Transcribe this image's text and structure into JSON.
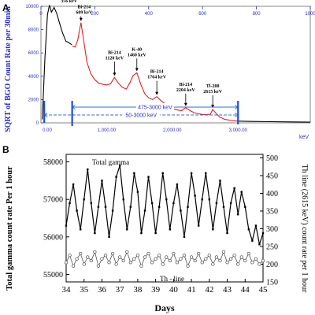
{
  "chart_data": [
    {
      "panel_label": "A",
      "type": "line",
      "ylabel": "SQRT of BGO Count Rate per 30min",
      "xlabel": "keV",
      "xlim": [
        0,
        4100
      ],
      "ylim": [
        0,
        10000
      ],
      "x_ticks": [
        0,
        200,
        400,
        600,
        800,
        1000
      ],
      "x_tick_labels_bottom": [
        "0.00",
        "1,000.00",
        "2,000.00",
        "3,000.00"
      ],
      "y_ticks": [
        0,
        2000,
        4000,
        6000,
        8000,
        10000
      ],
      "y_tick_labels": [
        "0",
        "2000",
        "4000",
        "6000",
        "8000",
        "10000"
      ],
      "series": [
        {
          "color": "#000000",
          "x": [
            20,
            60,
            100,
            130,
            160,
            200,
            240,
            280,
            330,
            380,
            420,
            470
          ],
          "y": [
            300,
            5500,
            9300,
            10100,
            9500,
            9900,
            9400,
            8600,
            7700,
            7000,
            6900,
            6700
          ]
        },
        {
          "color": "#e02020",
          "x": [
            475,
            520,
            560,
            609,
            650,
            700,
            760,
            820,
            880,
            950,
            1000,
            1060,
            1120,
            1180,
            1240,
            1300,
            1360,
            1400,
            1460,
            1520,
            1580,
            1640,
            1700,
            1764,
            1830,
            1900,
            1960,
            2020,
            2080,
            2140,
            2204,
            2270,
            2340,
            2400,
            2460,
            2520,
            2580,
            2615,
            2660,
            2720,
            2800,
            2900,
            3000
          ],
          "y": [
            6600,
            6500,
            7100,
            8600,
            7100,
            5200,
            4200,
            3700,
            3400,
            3300,
            3250,
            3350,
            3900,
            3400,
            3050,
            2900,
            3500,
            4050,
            4300,
            3300,
            2500,
            2150,
            2000,
            2250,
            1900,
            1600,
            1400,
            1200,
            1100,
            1050,
            1300,
            1050,
            850,
            780,
            720,
            700,
            750,
            1150,
            850,
            500,
            300,
            200,
            150
          ]
        },
        {
          "color": "#000000",
          "x": [
            3000,
            3200,
            3500,
            3800,
            4100
          ],
          "y": [
            150,
            120,
            100,
            80,
            60
          ]
        }
      ],
      "annotations": [
        {
          "label": "Ba-133",
          "value": "356 keV",
          "x": 356,
          "y": 9450
        },
        {
          "label": "Bi-214",
          "value": "609 keV",
          "x": 609,
          "y": 8600
        },
        {
          "label": "Bi-214",
          "value": "1120 keV",
          "x": 1120,
          "y": 3900
        },
        {
          "label": "K-40",
          "value": "1460 keV",
          "x": 1460,
          "y": 4300
        },
        {
          "label": "Bi-214",
          "value": "1764 keV",
          "x": 1764,
          "y": 2250
        },
        {
          "label": "Bi-214",
          "value": "2204 keV",
          "x": 2204,
          "y": 1300
        },
        {
          "label": "Tl-208",
          "value": "2615 keV",
          "x": 2615,
          "y": 1150
        }
      ],
      "ranges": [
        {
          "label": "475-3000 keV",
          "from": 475,
          "to": 3000
        },
        {
          "label": "50-3000 keV",
          "from": 50,
          "to": 3000
        }
      ]
    },
    {
      "panel_label": "B",
      "type": "line",
      "xlabel": "Days",
      "ylabel": "Total gamma count rate Per 1 hour",
      "y2label": "Th line (2615 keV) count rate per 1 hour",
      "xlim": [
        34,
        45
      ],
      "ylim": [
        54800,
        58200
      ],
      "y2lim": [
        150,
        510
      ],
      "x_ticks": [
        34,
        35,
        36,
        37,
        38,
        39,
        40,
        41,
        42,
        43,
        44,
        45
      ],
      "y_ticks": [
        55000,
        56000,
        57000,
        58000
      ],
      "y2_ticks": [
        150,
        200,
        250,
        300,
        350,
        400,
        450,
        500
      ],
      "series": [
        {
          "name": "Total gamma",
          "axis": "left",
          "x": [
            34.0,
            34.2,
            34.4,
            34.6,
            34.8,
            35.0,
            35.2,
            35.4,
            35.6,
            35.8,
            36.0,
            36.2,
            36.4,
            36.6,
            36.8,
            37.0,
            37.2,
            37.4,
            37.6,
            37.8,
            38.0,
            38.2,
            38.4,
            38.6,
            38.8,
            39.0,
            39.2,
            39.4,
            39.6,
            39.8,
            40.0,
            40.2,
            40.4,
            40.6,
            40.8,
            41.0,
            41.2,
            41.4,
            41.6,
            41.8,
            42.0,
            42.2,
            42.4,
            42.6,
            42.8,
            43.0,
            43.2,
            43.4,
            43.6,
            43.8,
            44.0,
            44.2,
            44.4,
            44.6,
            44.8,
            45.0
          ],
          "y": [
            56300,
            56900,
            57400,
            56700,
            56200,
            57000,
            57800,
            56900,
            56100,
            56800,
            57500,
            56800,
            56000,
            56700,
            57600,
            57900,
            57000,
            56200,
            56800,
            57700,
            57200,
            56100,
            56700,
            57600,
            56900,
            56100,
            56800,
            57700,
            57000,
            56200,
            56900,
            57400,
            56700,
            56000,
            56800,
            57700,
            57100,
            56300,
            57000,
            57700,
            57000,
            56200,
            56900,
            57500,
            56800,
            56100,
            56900,
            57300,
            56600,
            57200,
            56800,
            56200,
            55900,
            56300,
            55800,
            56100
          ]
        },
        {
          "name": "Th - line",
          "axis": "right",
          "x": [
            34.0,
            34.2,
            34.4,
            34.6,
            34.8,
            35.0,
            35.2,
            35.4,
            35.6,
            35.8,
            36.0,
            36.2,
            36.4,
            36.6,
            36.8,
            37.0,
            37.2,
            37.4,
            37.6,
            37.8,
            38.0,
            38.2,
            38.4,
            38.6,
            38.8,
            39.0,
            39.2,
            39.4,
            39.6,
            39.8,
            40.0,
            40.2,
            40.4,
            40.6,
            40.8,
            41.0,
            41.2,
            41.4,
            41.6,
            41.8,
            42.0,
            42.2,
            42.4,
            42.6,
            42.8,
            43.0,
            43.2,
            43.4,
            43.6,
            43.8,
            44.0,
            44.2,
            44.4,
            44.6,
            44.8,
            45.0
          ],
          "y": [
            205,
            225,
            195,
            215,
            230,
            200,
            220,
            210,
            235,
            195,
            215,
            225,
            205,
            230,
            200,
            220,
            210,
            235,
            205,
            215,
            225,
            195,
            220,
            230,
            205,
            215,
            225,
            200,
            220,
            210,
            230,
            205,
            215,
            225,
            195,
            220,
            210,
            230,
            205,
            215,
            225,
            200,
            220,
            210,
            235,
            205,
            215,
            225,
            200,
            220,
            210,
            230,
            205,
            215,
            200,
            210
          ]
        }
      ],
      "annotations": [
        {
          "label": "Total gamma"
        },
        {
          "label": "Th - line"
        }
      ]
    }
  ]
}
